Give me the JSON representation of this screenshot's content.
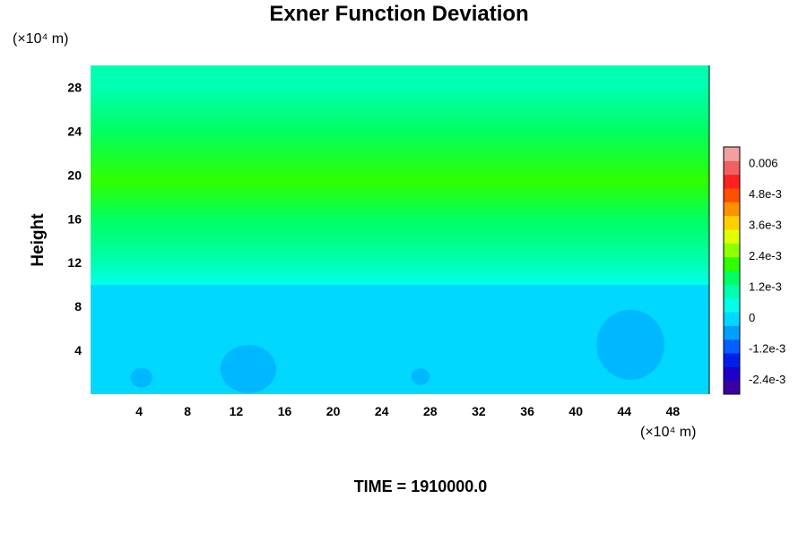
{
  "chart_data": {
    "type": "heatmap",
    "title": "Exner Function Deviation",
    "ylabel": "Height",
    "y_unit_label": "(×10⁴ m)",
    "x_unit_label": "(×10⁴ m)",
    "xlim": [
      0,
      51
    ],
    "ylim": [
      0,
      30
    ],
    "x_ticks": [
      4,
      8,
      12,
      16,
      20,
      24,
      28,
      32,
      36,
      40,
      44,
      48
    ],
    "y_ticks": [
      4,
      8,
      12,
      16,
      20,
      24,
      28
    ],
    "colorbar": {
      "tick_labels": [
        "0.006",
        "4.8e-3",
        "3.6e-3",
        "2.4e-3",
        "1.2e-3",
        "0",
        "-1.2e-3",
        "-2.4e-3"
      ],
      "tick_values": [
        0.006,
        0.0048,
        0.0036,
        0.0024,
        0.0012,
        0,
        -0.0012,
        -0.0024
      ],
      "range": [
        -0.003,
        0.0066
      ],
      "colors": [
        "#3a00a0",
        "#1e00c8",
        "#0020e8",
        "#0060ff",
        "#00a0ff",
        "#00d8ff",
        "#00ffe8",
        "#00ffb0",
        "#00ff60",
        "#30ff00",
        "#90ff00",
        "#e0ff00",
        "#ffd000",
        "#ff9000",
        "#ff5000",
        "#ff2020",
        "#f06060",
        "#f0a0a0"
      ]
    },
    "vertical_profile": [
      {
        "height": 0,
        "value": 0.0002
      },
      {
        "height": 9.8,
        "value": 0.0002
      },
      {
        "height": 10.2,
        "value": 0.0007
      },
      {
        "height": 12,
        "value": 0.001
      },
      {
        "height": 16,
        "value": 0.0017
      },
      {
        "height": 19.5,
        "value": 0.0022
      },
      {
        "height": 24,
        "value": 0.0017
      },
      {
        "height": 28,
        "value": 0.001
      },
      {
        "height": 30,
        "value": 0.0009
      }
    ],
    "anomaly_regions": [
      {
        "x": 4.2,
        "y": 1.5,
        "rx": 0.9,
        "ry": 0.9,
        "value": -0.0002
      },
      {
        "x": 13,
        "y": 2.3,
        "rx": 2.3,
        "ry": 2.2,
        "value": -0.0002
      },
      {
        "x": 27.2,
        "y": 1.6,
        "rx": 0.75,
        "ry": 0.75,
        "value": -0.0002
      },
      {
        "x": 44.5,
        "y": 4.5,
        "rx": 2.8,
        "ry": 3.2,
        "value": -0.0002
      }
    ]
  },
  "footer": {
    "time_label": "TIME = 1910000.0"
  }
}
